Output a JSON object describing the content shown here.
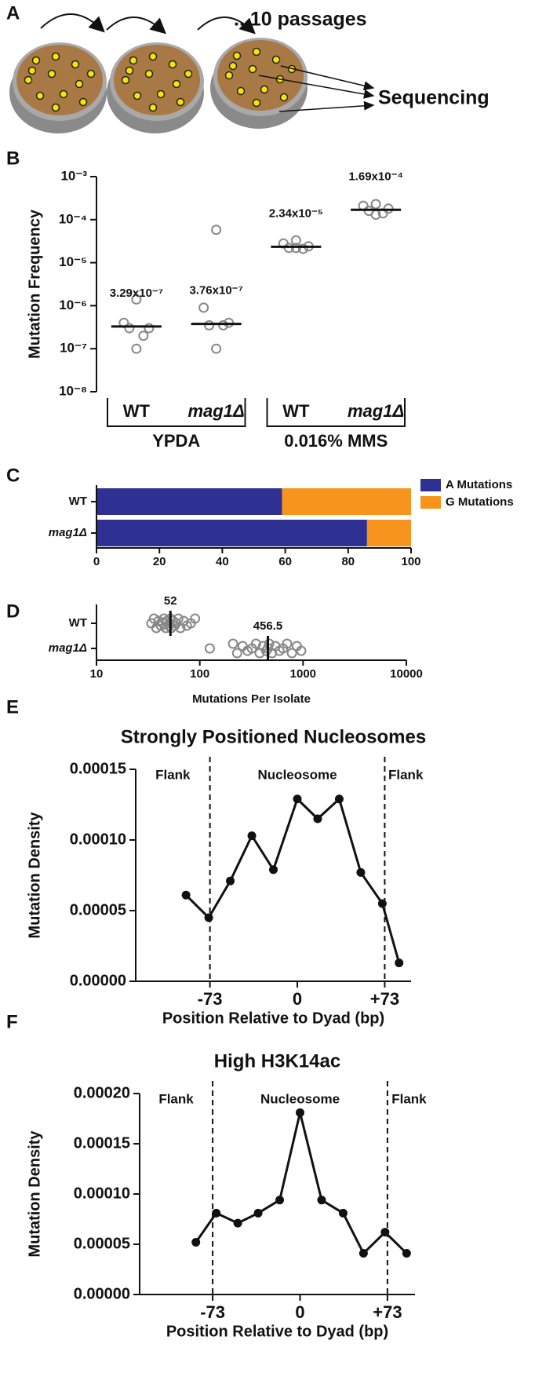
{
  "panel_a": {
    "label": "A",
    "passages": "...10 passages",
    "sequencing": "Sequencing"
  },
  "chart_data": [
    {
      "type": "strip",
      "orientation": "vertical",
      "panel": "B",
      "ylabel": "Mutation Frequency",
      "log": true,
      "ylim": [
        1e-08,
        0.001
      ],
      "yticks": [
        {
          "value": 1e-08,
          "label": "10⁻⁸"
        },
        {
          "value": 1e-07,
          "label": "10⁻⁷"
        },
        {
          "value": 1e-06,
          "label": "10⁻⁶"
        },
        {
          "value": 1e-05,
          "label": "10⁻⁵"
        },
        {
          "value": 0.0001,
          "label": "10⁻⁴"
        },
        {
          "value": 0.001,
          "label": "10⁻³"
        }
      ],
      "categories": [
        "WT",
        "mag1Δ",
        "WT",
        "mag1Δ"
      ],
      "groups": [
        "YPDA",
        "0.016% MMS"
      ],
      "values": [
        [
          1.4e-06,
          4e-07,
          3e-07,
          3e-07,
          2e-07,
          1e-07
        ],
        [
          5.8e-05,
          9e-07,
          4e-07,
          3.5e-07,
          3.5e-07,
          1e-07
        ],
        [
          3.3e-05,
          2.8e-05,
          2.4e-05,
          2.2e-05,
          2.1e-05,
          2.2e-05
        ],
        [
          0.00023,
          0.00021,
          0.00018,
          0.00016,
          0.00014,
          0.00013
        ]
      ],
      "medians": [
        3.29e-07,
        3.76e-07,
        2.34e-05,
        0.000169
      ],
      "value_labels": [
        "3.29x10⁻⁷",
        "3.76x10⁻⁷",
        "2.34x10⁻⁵",
        "1.69x10⁻⁴"
      ],
      "color": "#888888"
    },
    {
      "type": "bar",
      "orientation": "horizontal",
      "stacked": true,
      "panel": "C",
      "categories": [
        "WT",
        "mag1Δ"
      ],
      "series": [
        {
          "name": "A Mutations",
          "color": "#2e3192",
          "values": [
            59,
            86
          ]
        },
        {
          "name": "G Mutations",
          "color": "#f7941d",
          "values": [
            41,
            14
          ]
        }
      ],
      "xlim": [
        0,
        100
      ],
      "xticks": [
        0,
        20,
        40,
        60,
        80,
        100
      ],
      "legend": "right"
    },
    {
      "type": "strip",
      "orientation": "horizontal",
      "panel": "D",
      "xlabel": "Mutations Per Isolate",
      "log": true,
      "xlim": [
        10,
        10000
      ],
      "xticks": [
        10,
        100,
        1000,
        10000
      ],
      "categories": [
        "WT",
        "mag1Δ"
      ],
      "values": [
        [
          34,
          36,
          38,
          40,
          42,
          44,
          45,
          47,
          48,
          50,
          51,
          52,
          53,
          55,
          57,
          59,
          62,
          65,
          70,
          75,
          82,
          90
        ],
        [
          125,
          210,
          230,
          260,
          290,
          320,
          350,
          380,
          410,
          440,
          456.5,
          470,
          500,
          540,
          590,
          640,
          700,
          780,
          870,
          960
        ]
      ],
      "medians": [
        52,
        456.5
      ],
      "color": "#888888"
    },
    {
      "type": "line",
      "panel": "E",
      "title": "Strongly Positioned Nucleosomes",
      "xlabel": "Position Relative to Dyad (bp)",
      "ylabel": "Mutation Density",
      "x": [
        -93,
        -74,
        -56,
        -38,
        -20,
        0,
        17,
        35,
        53,
        71,
        85
      ],
      "values": [
        6.1e-05,
        4.5e-05,
        7.1e-05,
        0.000103,
        7.9e-05,
        0.000129,
        0.000115,
        0.000129,
        7.7e-05,
        5.5e-05,
        1.3e-05
      ],
      "xlim": [
        -135,
        95
      ],
      "xticks": [
        -73,
        0,
        {
          "value": 73,
          "label": "+73"
        }
      ],
      "ylim": [
        0,
        0.00015
      ],
      "yticks": [
        {
          "value": 0,
          "label": "0.00000"
        },
        {
          "value": 5e-05,
          "label": "0.00005"
        },
        {
          "value": 0.0001,
          "label": "0.00010"
        },
        {
          "value": 0.00015,
          "label": "0.00015"
        }
      ],
      "region_lines": [
        -73,
        73
      ],
      "annotations": [
        "Flank",
        "Nucleosome",
        "Flank"
      ],
      "color": "#111111"
    },
    {
      "type": "line",
      "panel": "F",
      "title": "High H3K14ac",
      "xlabel": "Position Relative to Dyad (bp)",
      "ylabel": "Mutation Density",
      "x": [
        -87,
        -70,
        -52,
        -35,
        -17,
        0,
        18,
        36,
        53,
        71,
        89
      ],
      "values": [
        5.2e-05,
        8.1e-05,
        7.1e-05,
        8.1e-05,
        9.4e-05,
        0.000181,
        9.4e-05,
        8.1e-05,
        4.1e-05,
        6.2e-05,
        4.1e-05
      ],
      "xlim": [
        -134,
        96
      ],
      "xticks": [
        -73,
        0,
        {
          "value": 73,
          "label": "+73"
        }
      ],
      "ylim": [
        0,
        0.0002
      ],
      "yticks": [
        {
          "value": 0,
          "label": "0.00000"
        },
        {
          "value": 5e-05,
          "label": "0.00005"
        },
        {
          "value": 0.0001,
          "label": "0.00010"
        },
        {
          "value": 0.00015,
          "label": "0.00015"
        },
        {
          "value": 0.0002,
          "label": "0.00020"
        }
      ],
      "region_lines": [
        -73,
        73
      ],
      "annotations": [
        "Flank",
        "Nucleosome",
        "Flank"
      ],
      "color": "#111111"
    }
  ]
}
